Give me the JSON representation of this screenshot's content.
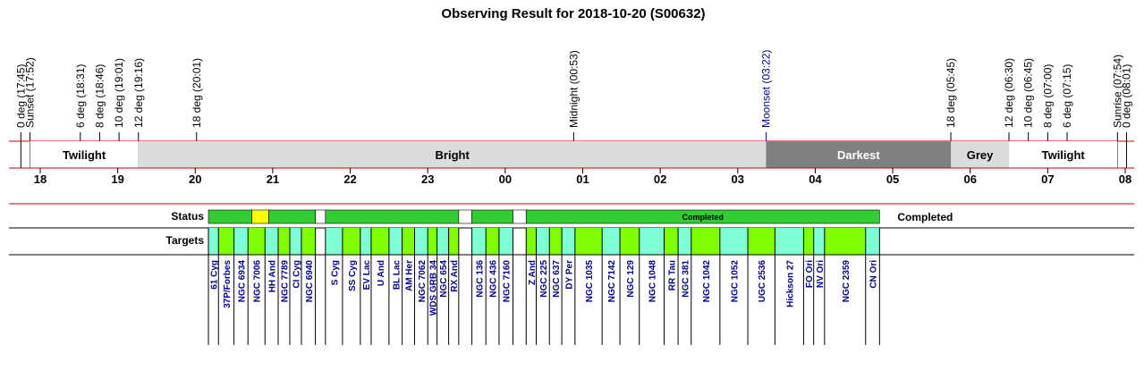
{
  "title": "Observing Result for 2018-10-20 (S00632)",
  "chart_data": {
    "type": "timeline",
    "x_unit": "hours",
    "x_range": [
      17.5,
      32.1
    ],
    "hour_ticks": [
      {
        "h": 18,
        "label": "18"
      },
      {
        "h": 19,
        "label": "19"
      },
      {
        "h": 20,
        "label": "20"
      },
      {
        "h": 21,
        "label": "21"
      },
      {
        "h": 22,
        "label": "22"
      },
      {
        "h": 23,
        "label": "23"
      },
      {
        "h": 24,
        "label": "00"
      },
      {
        "h": 25,
        "label": "01"
      },
      {
        "h": 26,
        "label": "02"
      },
      {
        "h": 27,
        "label": "03"
      },
      {
        "h": 28,
        "label": "04"
      },
      {
        "h": 29,
        "label": "05"
      },
      {
        "h": 30,
        "label": "06"
      },
      {
        "h": 31,
        "label": "07"
      },
      {
        "h": 32,
        "label": "08"
      }
    ],
    "events": [
      {
        "h": 17.75,
        "label": "0 deg (17:45)",
        "color": "#000000"
      },
      {
        "h": 17.867,
        "label": "Sunset (17:52)",
        "color": "#000000"
      },
      {
        "h": 18.517,
        "label": "6 deg (18:31)",
        "color": "#000000"
      },
      {
        "h": 18.767,
        "label": "8 deg (18:46)",
        "color": "#000000"
      },
      {
        "h": 19.017,
        "label": "10 deg (19:01)",
        "color": "#000000"
      },
      {
        "h": 19.267,
        "label": "12 deg (19:16)",
        "color": "#000000"
      },
      {
        "h": 20.017,
        "label": "18 deg (20:01)",
        "color": "#000000"
      },
      {
        "h": 24.883,
        "label": "Midnight (00:53)",
        "color": "#000000"
      },
      {
        "h": 27.367,
        "label": "Moonset (03:22)",
        "color": "#00008b"
      },
      {
        "h": 29.75,
        "label": "18 deg (05:45)",
        "color": "#000000"
      },
      {
        "h": 30.5,
        "label": "12 deg (06:30)",
        "color": "#000000"
      },
      {
        "h": 30.75,
        "label": "10 deg (06:45)",
        "color": "#000000"
      },
      {
        "h": 31.0,
        "label": "8 deg (07:00)",
        "color": "#000000"
      },
      {
        "h": 31.25,
        "label": "6 deg (07:15)",
        "color": "#000000"
      },
      {
        "h": 31.9,
        "label": "Sunrise (07:54)",
        "color": "#000000"
      },
      {
        "h": 32.017,
        "label": "0 deg (08:01)",
        "color": "#000000"
      }
    ],
    "sky_bands": [
      {
        "start": 17.867,
        "end": 19.267,
        "label": "Twilight",
        "fill": "#ffffff",
        "text_color": "#000000"
      },
      {
        "start": 19.267,
        "end": 27.367,
        "label": "Bright",
        "fill": "#dcdcdc",
        "text_color": "#000000"
      },
      {
        "start": 27.367,
        "end": 29.75,
        "label": "Darkest",
        "fill": "#808080",
        "text_color": "#ffffff"
      },
      {
        "start": 29.75,
        "end": 30.5,
        "label": "Grey",
        "fill": "#dcdcdc",
        "text_color": "#000000"
      },
      {
        "start": 30.5,
        "end": 31.9,
        "label": "Twilight",
        "fill": "#ffffff",
        "text_color": "#000000"
      }
    ],
    "status_label": "Status",
    "status_right_text": "Completed",
    "status_segments": [
      {
        "start": 20.17,
        "end": 20.73,
        "fill": "#33cc33",
        "text": ""
      },
      {
        "start": 20.73,
        "end": 20.95,
        "fill": "#ffff00",
        "text": ""
      },
      {
        "start": 20.95,
        "end": 21.55,
        "fill": "#33cc33",
        "text": ""
      },
      {
        "start": 21.55,
        "end": 21.68,
        "fill": "#ffffff",
        "text": ""
      },
      {
        "start": 21.68,
        "end": 23.4,
        "fill": "#33cc33",
        "text": ""
      },
      {
        "start": 23.4,
        "end": 23.57,
        "fill": "#ffffff",
        "text": ""
      },
      {
        "start": 23.57,
        "end": 24.1,
        "fill": "#33cc33",
        "text": ""
      },
      {
        "start": 24.1,
        "end": 24.27,
        "fill": "#ffffff",
        "text": ""
      },
      {
        "start": 24.27,
        "end": 28.83,
        "fill": "#33cc33",
        "text": "Completed"
      }
    ],
    "targets_label": "Targets",
    "targets": [
      {
        "start": 20.17,
        "end": 20.3,
        "name": "61 Cyg",
        "fill": "#7fffd4"
      },
      {
        "start": 20.3,
        "end": 20.5,
        "name": "37P/Forbes",
        "fill": "#7fff00"
      },
      {
        "start": 20.5,
        "end": 20.68,
        "name": "NGC 6934",
        "fill": "#7fffd4"
      },
      {
        "start": 20.68,
        "end": 20.9,
        "name": "NGC 7006",
        "fill": "#7fff00"
      },
      {
        "start": 20.9,
        "end": 21.07,
        "name": "HH And",
        "fill": "#7fffd4"
      },
      {
        "start": 21.07,
        "end": 21.22,
        "name": "NGC 7789",
        "fill": "#7fff00"
      },
      {
        "start": 21.22,
        "end": 21.37,
        "name": "CI Cyg",
        "fill": "#7fffd4"
      },
      {
        "start": 21.37,
        "end": 21.55,
        "name": "NGC 6940",
        "fill": "#7fff00"
      },
      {
        "start": 21.68,
        "end": 21.9,
        "name": "S Cyg",
        "fill": "#7fffd4"
      },
      {
        "start": 21.9,
        "end": 22.13,
        "name": "SS Cyg",
        "fill": "#7fff00"
      },
      {
        "start": 22.13,
        "end": 22.27,
        "name": "EV Lac",
        "fill": "#7fffd4"
      },
      {
        "start": 22.27,
        "end": 22.5,
        "name": "U And",
        "fill": "#7fff00"
      },
      {
        "start": 22.5,
        "end": 22.67,
        "name": "BL Lac",
        "fill": "#7fffd4"
      },
      {
        "start": 22.67,
        "end": 22.83,
        "name": "AM Her",
        "fill": "#7fff00"
      },
      {
        "start": 22.83,
        "end": 23.0,
        "name": "NGC 7062",
        "fill": "#7fffd4"
      },
      {
        "start": 23.0,
        "end": 23.12,
        "name": "WDS GRB 34",
        "fill": "#7fff00"
      },
      {
        "start": 23.12,
        "end": 23.27,
        "name": "NGC 654",
        "fill": "#7fffd4"
      },
      {
        "start": 23.27,
        "end": 23.4,
        "name": "RX And",
        "fill": "#7fff00"
      },
      {
        "start": 23.57,
        "end": 23.75,
        "name": "NGC 136",
        "fill": "#7fffd4"
      },
      {
        "start": 23.75,
        "end": 23.92,
        "name": "NGC 436",
        "fill": "#7fff00"
      },
      {
        "start": 23.92,
        "end": 24.1,
        "name": "NGC 7160",
        "fill": "#7fffd4"
      },
      {
        "start": 24.27,
        "end": 24.4,
        "name": "Z And",
        "fill": "#7fff00"
      },
      {
        "start": 24.4,
        "end": 24.57,
        "name": "NGC 225",
        "fill": "#7fffd4"
      },
      {
        "start": 24.57,
        "end": 24.73,
        "name": "NGC 637",
        "fill": "#7fff00"
      },
      {
        "start": 24.73,
        "end": 24.9,
        "name": "DY Per",
        "fill": "#7fffd4"
      },
      {
        "start": 24.9,
        "end": 25.25,
        "name": "NGC 1035",
        "fill": "#7fff00"
      },
      {
        "start": 25.25,
        "end": 25.48,
        "name": "NGC 7142",
        "fill": "#7fffd4"
      },
      {
        "start": 25.48,
        "end": 25.73,
        "name": "NGC 129",
        "fill": "#7fff00"
      },
      {
        "start": 25.73,
        "end": 26.05,
        "name": "NGC 1048",
        "fill": "#7fffd4"
      },
      {
        "start": 26.05,
        "end": 26.23,
        "name": "RR Tau",
        "fill": "#7fff00"
      },
      {
        "start": 26.23,
        "end": 26.4,
        "name": "NGC 381",
        "fill": "#7fffd4"
      },
      {
        "start": 26.4,
        "end": 26.77,
        "name": "NGC 1042",
        "fill": "#7fff00"
      },
      {
        "start": 26.77,
        "end": 27.13,
        "name": "NGC 1052",
        "fill": "#7fffd4"
      },
      {
        "start": 27.13,
        "end": 27.48,
        "name": "UGC 2536",
        "fill": "#7fff00"
      },
      {
        "start": 27.48,
        "end": 27.85,
        "name": "Hickson 27",
        "fill": "#7fffd4"
      },
      {
        "start": 27.85,
        "end": 27.98,
        "name": "FO Ori",
        "fill": "#7fff00"
      },
      {
        "start": 27.98,
        "end": 28.12,
        "name": "NV Ori",
        "fill": "#7fffd4"
      },
      {
        "start": 28.12,
        "end": 28.65,
        "name": "NGC 2359",
        "fill": "#7fff00"
      },
      {
        "start": 28.65,
        "end": 28.83,
        "name": "CN Ori",
        "fill": "#7fffd4"
      }
    ]
  }
}
